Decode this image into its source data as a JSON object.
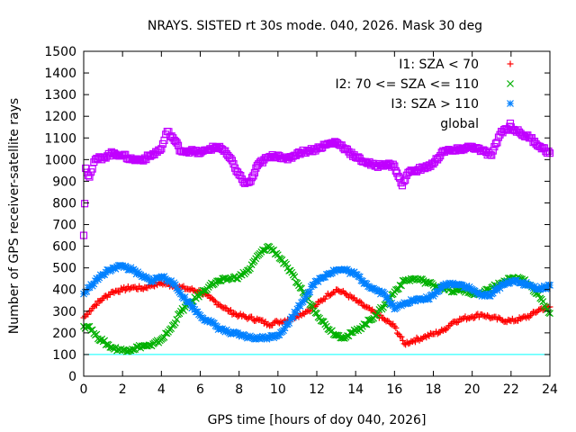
{
  "chart_data": {
    "type": "scatter",
    "title": "NRAYS. SISTED rt 30s mode. 040, 2026. Mask 30 deg",
    "xlabel": "GPS time [hours of doy 040, 2026]",
    "ylabel": "Number of GPS receiver-satellite rays",
    "xlim": [
      0,
      24
    ],
    "ylim": [
      0,
      1500
    ],
    "x_ticks": [
      "0",
      "2",
      "4",
      "6",
      "8",
      "10",
      "12",
      "14",
      "16",
      "18",
      "20",
      "22",
      "24"
    ],
    "y_ticks": [
      "0",
      "100",
      "200",
      "300",
      "400",
      "500",
      "600",
      "700",
      "800",
      "900",
      "1000",
      "1100",
      "1200",
      "1300",
      "1400",
      "1500"
    ],
    "grid": false,
    "legend_position": "top-right",
    "reference_line": {
      "y": 100,
      "color": "#00ffff"
    },
    "series": [
      {
        "name": "I1: SZA < 70",
        "marker": "plus",
        "color": "#ff0000",
        "x": [
          0,
          0.3,
          0.6,
          1,
          1.5,
          2,
          2.5,
          3,
          3.5,
          4,
          4.5,
          5,
          5.5,
          6,
          6.5,
          7,
          7.5,
          8,
          8.5,
          9,
          9.5,
          10,
          10.5,
          11,
          11.5,
          12,
          12.5,
          13,
          13.5,
          14,
          14.5,
          15,
          15.5,
          16,
          16.5,
          17,
          17.5,
          18,
          18.5,
          19,
          19.5,
          20,
          20.5,
          21,
          21.5,
          22,
          22.5,
          23,
          23.5,
          24
        ],
        "values": [
          270,
          300,
          330,
          360,
          390,
          400,
          410,
          405,
          420,
          430,
          420,
          410,
          400,
          390,
          360,
          330,
          300,
          280,
          270,
          260,
          240,
          250,
          260,
          280,
          300,
          330,
          370,
          400,
          380,
          350,
          320,
          290,
          260,
          230,
          150,
          165,
          180,
          195,
          210,
          250,
          265,
          275,
          285,
          270,
          260,
          255,
          265,
          280,
          310,
          320
        ]
      },
      {
        "name": "I2: 70 <= SZA <= 110",
        "marker": "cross",
        "color": "#00b000",
        "x": [
          0,
          0.3,
          0.6,
          1,
          1.5,
          2,
          2.5,
          3,
          3.5,
          4,
          4.5,
          5,
          5.5,
          6,
          6.5,
          7,
          7.5,
          8,
          8.5,
          9,
          9.5,
          10,
          10.5,
          11,
          11.5,
          12,
          12.5,
          13,
          13.5,
          14,
          14.5,
          15,
          15.5,
          16,
          16.5,
          17,
          17.5,
          18,
          18.5,
          19,
          19.5,
          20,
          20.5,
          21,
          21.5,
          22,
          22.5,
          23,
          23.5,
          24
        ],
        "values": [
          230,
          230,
          190,
          160,
          130,
          120,
          125,
          140,
          140,
          170,
          220,
          300,
          340,
          380,
          420,
          440,
          450,
          460,
          490,
          560,
          600,
          560,
          500,
          430,
          360,
          290,
          230,
          190,
          180,
          210,
          240,
          280,
          330,
          390,
          440,
          450,
          440,
          420,
          410,
          390,
          400,
          380,
          380,
          410,
          430,
          450,
          450,
          420,
          360,
          290
        ]
      },
      {
        "name": "I3: SZA > 110",
        "marker": "star",
        "color": "#0080ff",
        "x": [
          0,
          0.3,
          0.6,
          1,
          1.5,
          2,
          2.5,
          3,
          3.5,
          4,
          4.5,
          5,
          5.5,
          6,
          6.5,
          7,
          7.5,
          8,
          8.5,
          9,
          9.5,
          10,
          10.5,
          11,
          11.5,
          12,
          12.5,
          13,
          13.5,
          14,
          14.5,
          15,
          15.5,
          16,
          16.5,
          17,
          17.5,
          18,
          18.5,
          19,
          19.5,
          20,
          20.5,
          21,
          21.5,
          22,
          22.5,
          23,
          23.5,
          24
        ],
        "values": [
          380,
          410,
          440,
          470,
          500,
          510,
          490,
          460,
          440,
          460,
          440,
          380,
          330,
          280,
          250,
          220,
          200,
          190,
          180,
          175,
          180,
          190,
          240,
          310,
          380,
          440,
          470,
          490,
          490,
          470,
          430,
          400,
          380,
          310,
          340,
          350,
          355,
          370,
          420,
          430,
          420,
          400,
          370,
          380,
          420,
          440,
          430,
          420,
          400,
          420
        ]
      },
      {
        "name": "global",
        "marker": "square",
        "color": "#c000ff",
        "x": [
          0,
          0.1,
          0.3,
          0.6,
          1,
          1.5,
          2,
          2.5,
          3,
          3.5,
          4,
          4.3,
          4.6,
          5,
          5.5,
          6,
          6.5,
          7,
          7.5,
          8,
          8.3,
          8.6,
          9,
          9.5,
          10,
          10.5,
          11,
          11.5,
          12,
          12.5,
          13,
          13.5,
          14,
          14.5,
          15,
          15.5,
          16,
          16.4,
          16.7,
          17,
          17.5,
          18,
          18.5,
          19,
          19.5,
          20,
          20.5,
          21,
          21.5,
          22,
          22.5,
          23,
          23.5,
          24
        ],
        "values": [
          650,
          960,
          920,
          1000,
          1010,
          1030,
          1020,
          1000,
          1000,
          1020,
          1050,
          1130,
          1100,
          1040,
          1040,
          1030,
          1050,
          1060,
          1010,
          930,
          890,
          900,
          980,
          1010,
          1020,
          1000,
          1030,
          1040,
          1050,
          1070,
          1080,
          1050,
          1010,
          990,
          970,
          980,
          970,
          880,
          940,
          950,
          960,
          980,
          1040,
          1040,
          1050,
          1060,
          1040,
          1020,
          1130,
          1150,
          1120,
          1100,
          1060,
          1030
        ]
      }
    ]
  }
}
